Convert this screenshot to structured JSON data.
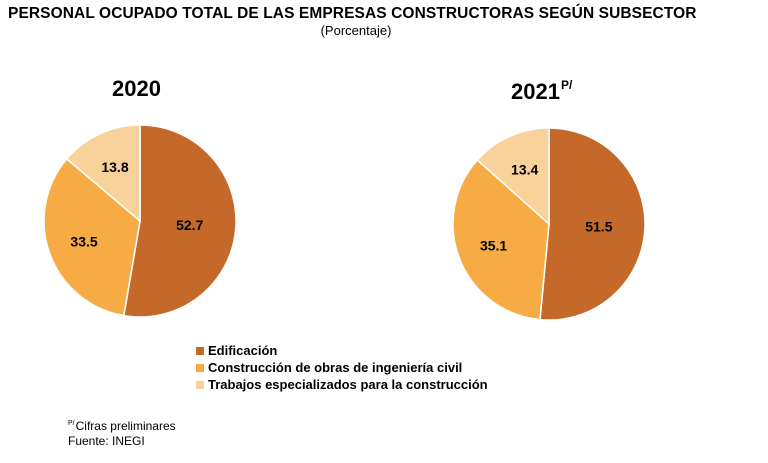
{
  "chart_data": [
    {
      "type": "pie",
      "title": "2020",
      "title_superscript": "",
      "categories": [
        "Edificación",
        "Construcción de obras de ingeniería civil",
        "Trabajos especializados para la construcción"
      ],
      "values": [
        52.7,
        33.5,
        13.8
      ],
      "labels": [
        "52.7",
        "33.5",
        "13.8"
      ],
      "colors": [
        "#c5692b",
        "#f6ab45",
        "#f9d19b"
      ]
    },
    {
      "type": "pie",
      "title": "2021",
      "title_superscript": "P/",
      "categories": [
        "Edificación",
        "Construcción de obras de ingeniería civil",
        "Trabajos especializados para la construcción"
      ],
      "values": [
        51.5,
        35.1,
        13.4
      ],
      "labels": [
        "51.5",
        "35.1",
        "13.4"
      ],
      "colors": [
        "#c5692b",
        "#f6ab45",
        "#f9d19b"
      ]
    }
  ],
  "figure": {
    "title": "PERSONAL OCUPADO TOTAL DE LAS EMPRESAS CONSTRUCTORAS SEGÚN SUBSECTOR",
    "subtitle": "(Porcentaje)"
  },
  "legend": {
    "items": [
      {
        "label": "Edificación",
        "color": "#c5692b"
      },
      {
        "label": "Construcción de obras de ingeniería civil",
        "color": "#f6ab45"
      },
      {
        "label": "Trabajos especializados para la construcción",
        "color": "#f9d19b"
      }
    ]
  },
  "footnotes": {
    "prelim_mark": "P/",
    "prelim_text": "Cifras preliminares",
    "source": "Fuente: INEGI"
  }
}
